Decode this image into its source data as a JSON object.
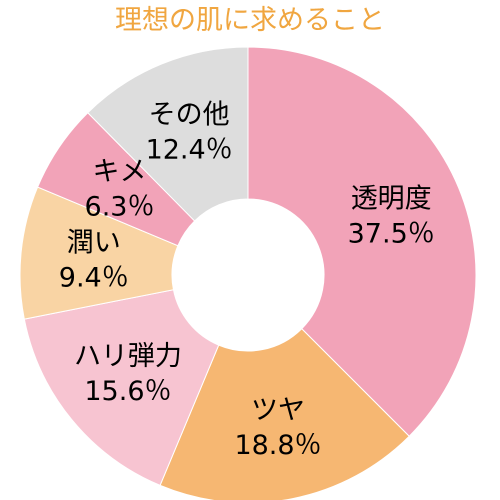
{
  "chart_data": {
    "type": "pie",
    "title": "理想の肌に求めること",
    "title_color": "#f0a640",
    "slices": [
      {
        "name": "透明度",
        "value": 37.5,
        "value_label": "37.5％",
        "color": "#f2a3b8"
      },
      {
        "name": "ツヤ",
        "value": 18.8,
        "value_label": "18.8％",
        "color": "#f6b772"
      },
      {
        "name": "ハリ弾力",
        "value": 15.6,
        "value_label": "15.6％",
        "color": "#f7c4d1"
      },
      {
        "name": "潤い",
        "value": 9.4,
        "value_label": "9.4％",
        "color": "#f9d4a4"
      },
      {
        "name": "キメ",
        "value": 6.3,
        "value_label": "6.3％",
        "color": "#f2a3b8"
      },
      {
        "name": "その他",
        "value": 12.4,
        "value_label": "12.4％",
        "color": "#dddddd"
      }
    ],
    "donut": true,
    "start": "12 o'clock",
    "direction": "clockwise",
    "legend": "none",
    "labels": "inside slices"
  }
}
